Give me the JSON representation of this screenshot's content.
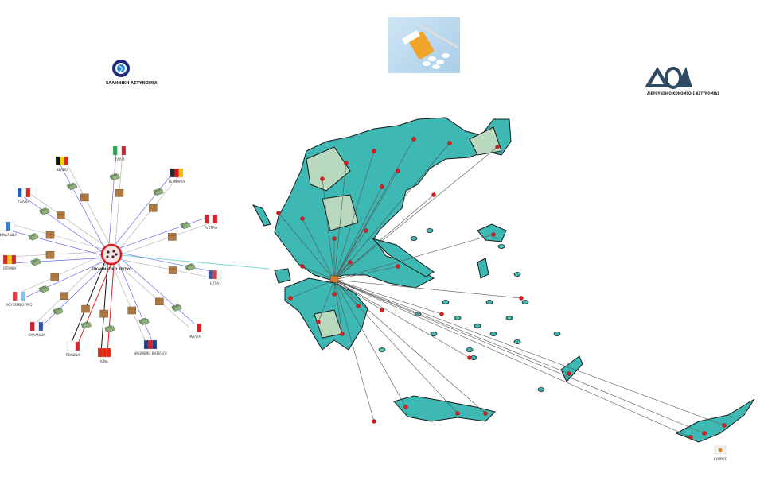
{
  "logos": {
    "left": {
      "text": "ΕΛΛΗΝΙΚΗ ΑΣΤΥΝΟΜΙΑ",
      "icon": "hellenic-police-emblem"
    },
    "right": {
      "text": "ΔΙΕΥΘΥΝΣΗ ΟΙΚΟΝΟΜΙΚΗΣ ΑΣΤΥΝΟΜΙΑΣ",
      "icon": "doa-logo"
    },
    "center_image": "pills-and-syringe-photo"
  },
  "network": {
    "hub_label": "ΕΓΚΛΗΜΑΤΙΚΟ ΔΙΚΤΥΟ",
    "countries": [
      {
        "name": "ΒΕΛΓΙΟ",
        "flag": [
          "#111111",
          "#f5d000",
          "#e0231b"
        ]
      },
      {
        "name": "ΙΤΑΛΙΑ",
        "flag": [
          "#2ea44a",
          "#ffffff",
          "#d2232a"
        ]
      },
      {
        "name": "ΓΕΡΜΑΝΙΑ",
        "flag": [
          "#222222",
          "#dd1111",
          "#f5c400"
        ]
      },
      {
        "name": "ΓΑΛΛΙΑ",
        "flag": [
          "#1d5bbf",
          "#ffffff",
          "#e0231b"
        ]
      },
      {
        "name": "ΦΙΝΛΑΝΔΙΑ",
        "flag": [
          "#ffffff",
          "#3a7fd5",
          "#ffffff"
        ]
      },
      {
        "name": "ΑΥΣΤΡΙΑ",
        "flag": [
          "#d9232a",
          "#ffffff",
          "#d9232a"
        ]
      },
      {
        "name": "ΙΣΠΑΝΙΑ",
        "flag": [
          "#d9232a",
          "#f5c400",
          "#d9232a"
        ]
      },
      {
        "name": "Η.Π.Α.",
        "flag": [
          "#3b5ba9",
          "#e04040",
          "#ffffff"
        ]
      },
      {
        "name": "ΛΟΥΞΕΜΒΟΥΡΓΟ",
        "flag": [
          "#e04040",
          "#ffffff",
          "#7fc3ee"
        ]
      },
      {
        "name": "ΟΛΛΑΝΔΙΑ",
        "flag": [
          "#c8202a",
          "#ffffff",
          "#2a58b0"
        ]
      },
      {
        "name": "ΜΑΛΤΑ",
        "flag": [
          "#ffffff",
          "#ffffff",
          "#d2232a"
        ]
      },
      {
        "name": "ΠΟΛΩΝΙΑ",
        "flag": [
          "#ffffff",
          "#ffffff",
          "#d9232a"
        ]
      },
      {
        "name": "ΚΙΝΑ",
        "flag": [
          "#de2910",
          "#de2910",
          "#de2910"
        ]
      },
      {
        "name": "ΗΝΩΜΕΝΟ ΒΑΣΙΛΕΙΟ",
        "flag": [
          "#1f3f8f",
          "#d2232a",
          "#1f3f8f"
        ]
      }
    ]
  },
  "map": {
    "cyprus_label": "ΚΥΠΡΟΣ",
    "colors": {
      "region": "#3db8b3",
      "region_light": "#b8d9bd",
      "outline": "#1a1a1a",
      "pin": "#e01b1b",
      "link": "#555555",
      "hub_link": "#7fd6d0"
    }
  },
  "colors": {
    "money_flow": "#6a6af0",
    "goods_flow": "#aaaaaa",
    "export_red": "#e01b1b",
    "export_black": "#111111",
    "hub": "#e01b1b"
  }
}
